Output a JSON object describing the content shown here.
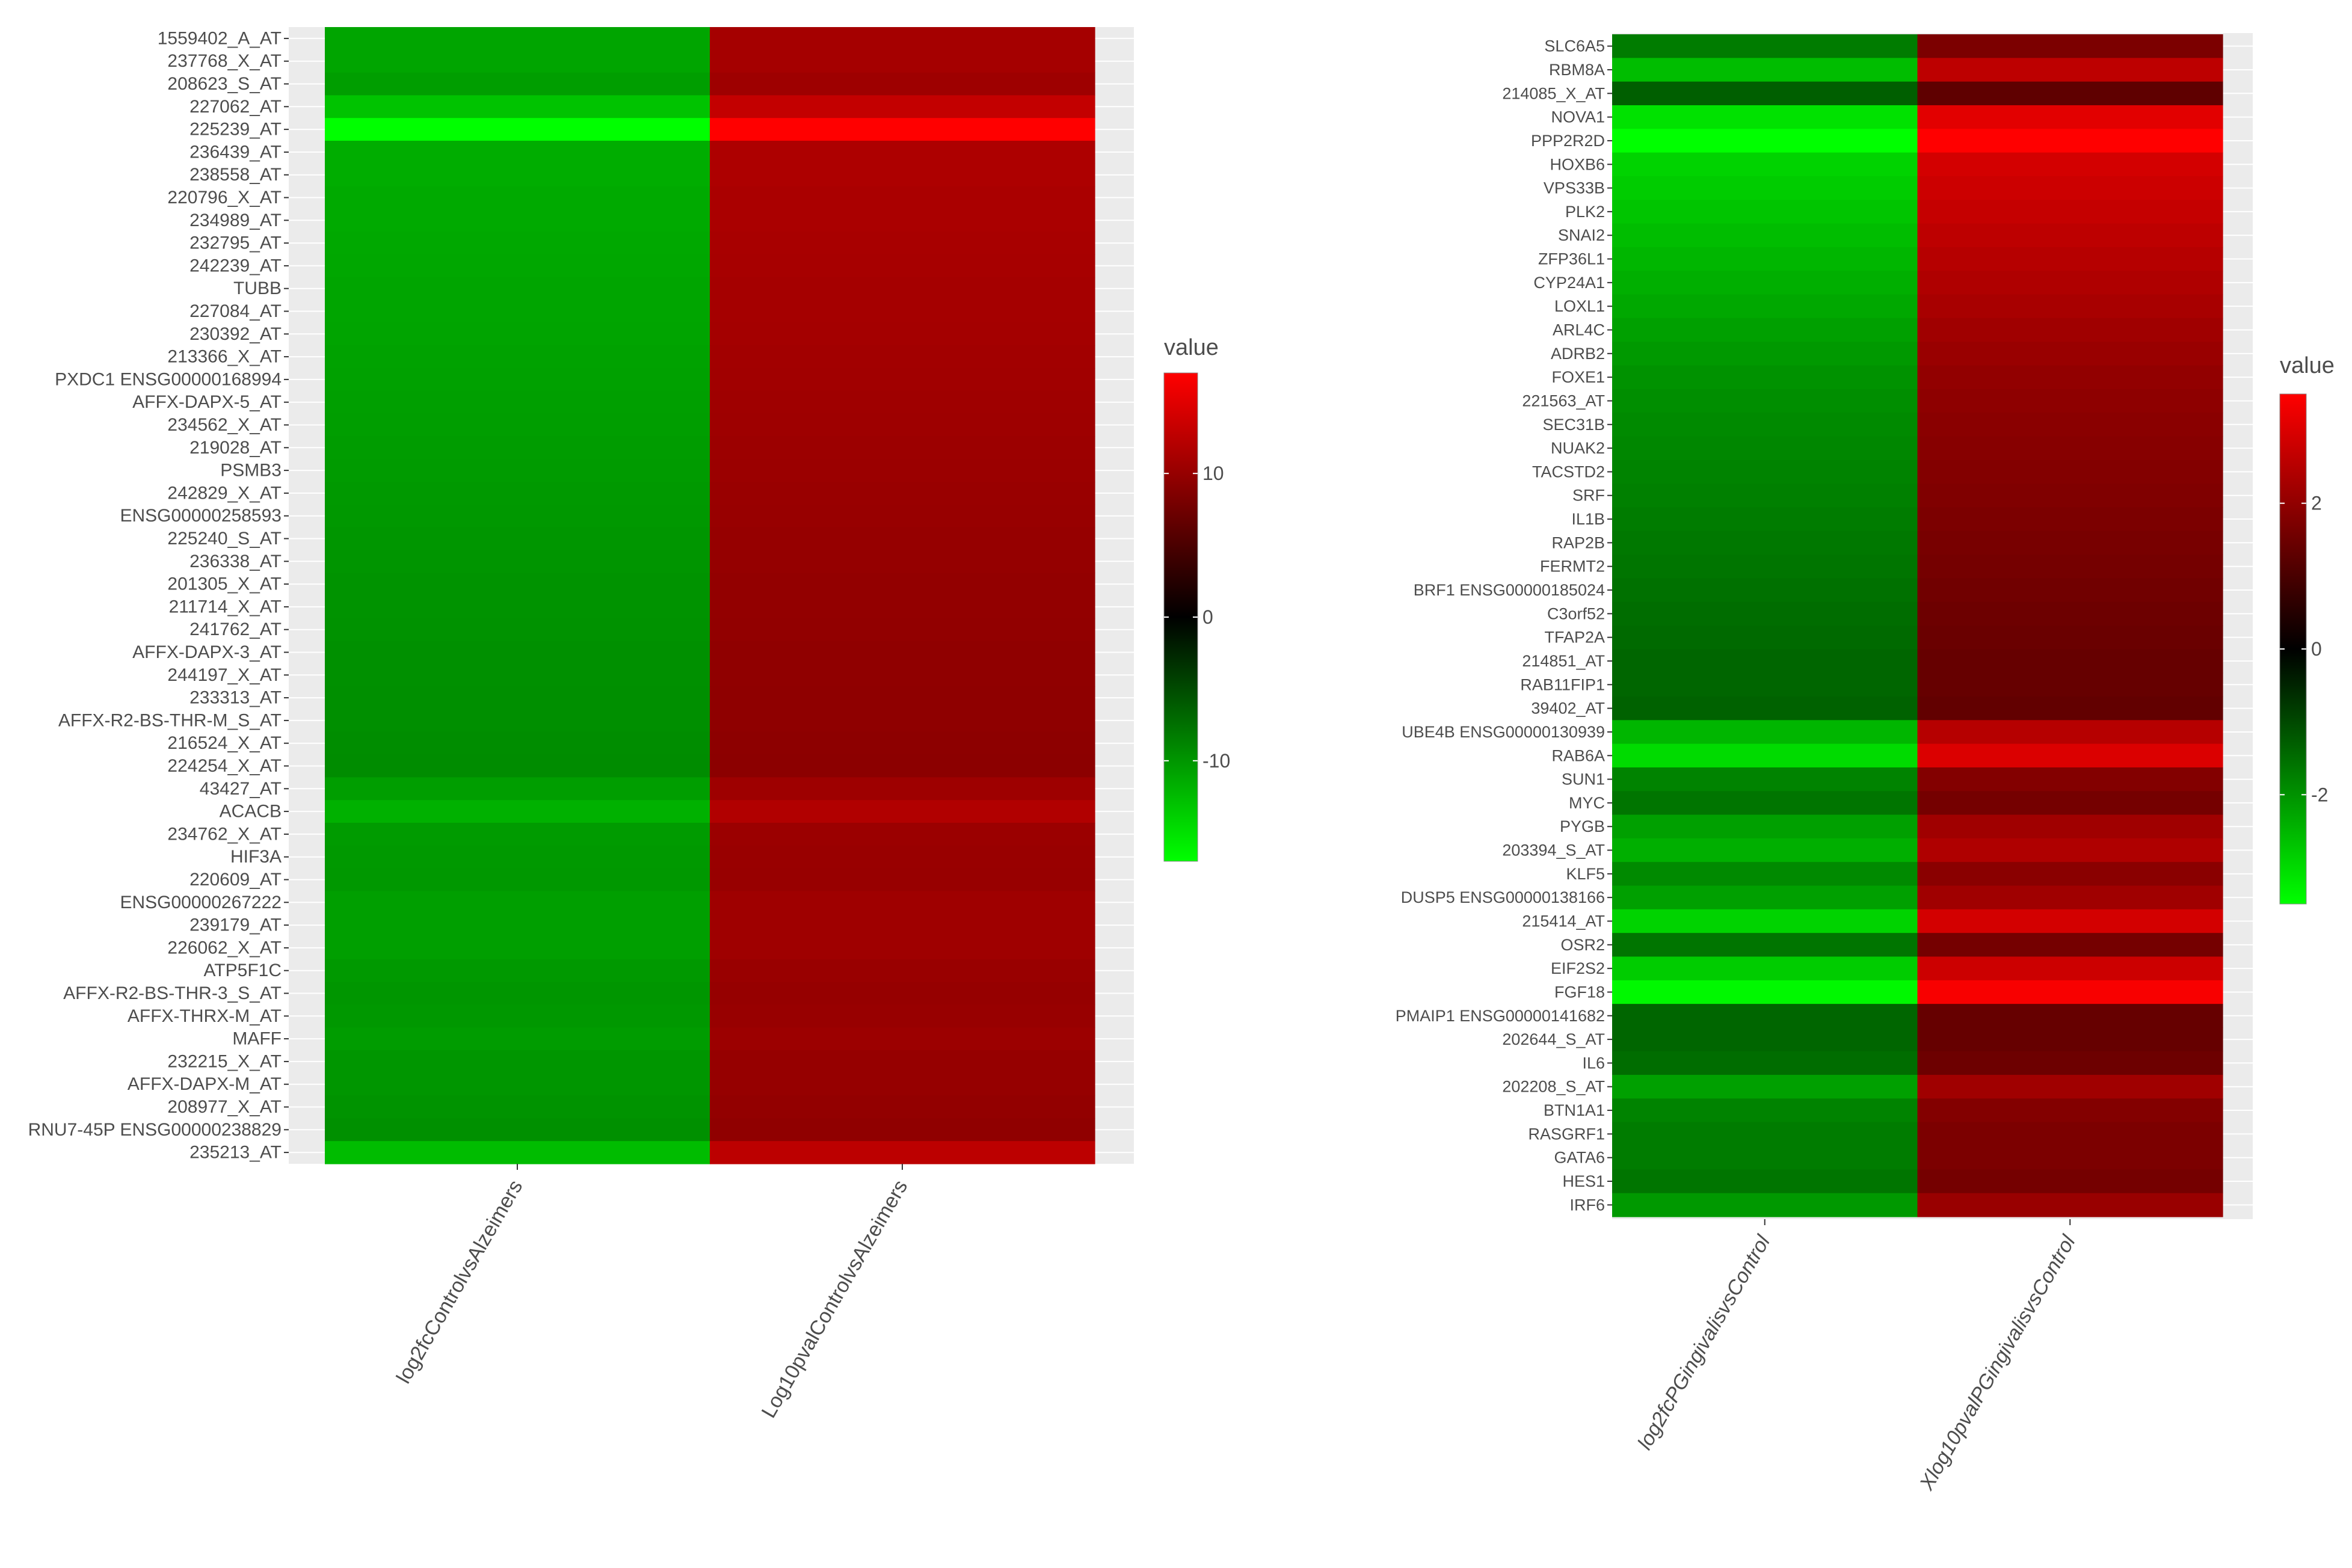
{
  "colors": {
    "neg": "#00ff00",
    "mid": "#000000",
    "pos": "#ff0000",
    "panel_bg": "#ebebeb",
    "text": "#4d4d4d"
  },
  "chart_data": [
    {
      "type": "heatmap",
      "title": "",
      "xlabel": "",
      "ylabel": "",
      "x_categories": [
        "log2fcControlvsAlzeimers",
        "Log10pvalControlvsAlzeimers"
      ],
      "y_categories": [
        "1559402_A_AT",
        "237768_X_AT",
        "208623_S_AT",
        "227062_AT",
        "225239_AT",
        "236439_AT",
        "238558_AT",
        "220796_X_AT",
        "234989_AT",
        "232795_AT",
        "242239_AT",
        "TUBB",
        "227084_AT",
        "230392_AT",
        "213366_X_AT",
        "PXDC1 ENSG00000168994",
        "AFFX-DAPX-5_AT",
        "234562_X_AT",
        "219028_AT",
        "PSMB3",
        "242829_X_AT",
        "ENSG00000258593",
        "225240_S_AT",
        "236338_AT",
        "201305_X_AT",
        "211714_X_AT",
        "241762_AT",
        "AFFX-DAPX-3_AT",
        "244197_X_AT",
        "233313_AT",
        "AFFX-R2-BS-THR-M_S_AT",
        "216524_X_AT",
        "224254_X_AT",
        "43427_AT",
        "ACACB",
        "234762_X_AT",
        "HIF3A",
        "220609_AT",
        "ENSG00000267222",
        "239179_AT",
        "226062_X_AT",
        "ATP5F1C",
        "AFFX-R2-BS-THR-3_S_AT",
        "AFFX-THRX-M_AT",
        "MAFF",
        "232215_X_AT",
        "AFFX-DAPX-M_AT",
        "208977_X_AT",
        "RNU7-45P ENSG00000238829",
        "235213_AT"
      ],
      "values": [
        [
          -11.0,
          11.0
        ],
        [
          -11.0,
          11.0
        ],
        [
          -10.5,
          10.5
        ],
        [
          -13.0,
          13.0
        ],
        [
          -17.0,
          17.0
        ],
        [
          -11.5,
          11.5
        ],
        [
          -11.5,
          11.5
        ],
        [
          -11.3,
          11.3
        ],
        [
          -11.3,
          11.3
        ],
        [
          -11.2,
          11.2
        ],
        [
          -11.1,
          11.1
        ],
        [
          -11.0,
          11.0
        ],
        [
          -11.0,
          11.0
        ],
        [
          -10.9,
          10.9
        ],
        [
          -10.8,
          10.8
        ],
        [
          -10.7,
          10.7
        ],
        [
          -10.6,
          10.6
        ],
        [
          -10.5,
          10.5
        ],
        [
          -10.4,
          10.4
        ],
        [
          -10.3,
          10.3
        ],
        [
          -10.2,
          10.2
        ],
        [
          -10.1,
          10.1
        ],
        [
          -10.0,
          10.0
        ],
        [
          -9.9,
          9.9
        ],
        [
          -9.8,
          9.8
        ],
        [
          -9.8,
          9.8
        ],
        [
          -9.7,
          9.7
        ],
        [
          -9.6,
          9.6
        ],
        [
          -9.6,
          9.6
        ],
        [
          -9.5,
          9.5
        ],
        [
          -9.5,
          9.5
        ],
        [
          -9.4,
          9.4
        ],
        [
          -9.3,
          9.3
        ],
        [
          -10.5,
          10.5
        ],
        [
          -11.8,
          11.8
        ],
        [
          -10.3,
          10.3
        ],
        [
          -10.2,
          10.2
        ],
        [
          -10.1,
          10.1
        ],
        [
          -10.6,
          10.6
        ],
        [
          -10.6,
          10.6
        ],
        [
          -10.6,
          10.6
        ],
        [
          -10.2,
          10.2
        ],
        [
          -10.0,
          10.0
        ],
        [
          -10.1,
          10.1
        ],
        [
          -10.4,
          10.4
        ],
        [
          -10.0,
          10.0
        ],
        [
          -10.0,
          10.0
        ],
        [
          -9.8,
          9.8
        ],
        [
          -9.6,
          9.6
        ],
        [
          -12.5,
          12.5
        ]
      ],
      "legend_title": "value",
      "legend_ticks": [
        10,
        0,
        -10
      ],
      "range": [
        -17,
        17
      ],
      "legend_position": "right"
    },
    {
      "type": "heatmap",
      "title": "",
      "xlabel": "",
      "ylabel": "",
      "x_categories": [
        "log2fcPGingivalisvsControl",
        "Xlog10pvalPGingivalisvsControl"
      ],
      "y_categories": [
        "SLC6A5",
        "RBM8A",
        "214085_X_AT",
        "NOVA1",
        "PPP2R2D",
        "HOXB6",
        "VPS33B",
        "PLK2",
        "SNAI2",
        "ZFP36L1",
        "CYP24A1",
        "LOXL1",
        "ARL4C",
        "ADRB2",
        "FOXE1",
        "221563_AT",
        "SEC31B",
        "NUAK2",
        "TACSTD2",
        "SRF",
        "IL1B",
        "RAP2B",
        "FERMT2",
        "BRF1 ENSG00000185024",
        "C3orf52",
        "TFAP2A",
        "214851_AT",
        "RAB11FIP1",
        "39402_AT",
        "UBE4B ENSG00000130939",
        "RAB6A",
        "SUN1",
        "MYC",
        "PYGB",
        "203394_S_AT",
        "KLF5",
        "DUSP5 ENSG00000138166",
        "215414_AT",
        "OSR2",
        "EIF2S2",
        "FGF18",
        "PMAIP1 ENSG00000141682",
        "202644_S_AT",
        "IL6",
        "202208_S_AT",
        "BTN1A1",
        "RASGRF1",
        "GATA6",
        "HES1",
        "IRF6"
      ],
      "values": [
        [
          -1.7,
          1.7
        ],
        [
          -2.6,
          2.6
        ],
        [
          -1.3,
          1.3
        ],
        [
          -3.1,
          3.1
        ],
        [
          -3.5,
          3.5
        ],
        [
          -2.9,
          2.9
        ],
        [
          -2.8,
          2.8
        ],
        [
          -2.7,
          2.7
        ],
        [
          -2.6,
          2.6
        ],
        [
          -2.5,
          2.5
        ],
        [
          -2.4,
          2.4
        ],
        [
          -2.3,
          2.3
        ],
        [
          -2.2,
          2.2
        ],
        [
          -2.1,
          2.1
        ],
        [
          -2.0,
          2.0
        ],
        [
          -1.95,
          1.95
        ],
        [
          -1.9,
          1.9
        ],
        [
          -1.85,
          1.85
        ],
        [
          -1.8,
          1.8
        ],
        [
          -1.75,
          1.75
        ],
        [
          -1.7,
          1.7
        ],
        [
          -1.65,
          1.65
        ],
        [
          -1.6,
          1.6
        ],
        [
          -1.55,
          1.55
        ],
        [
          -1.5,
          1.5
        ],
        [
          -1.45,
          1.45
        ],
        [
          -1.4,
          1.4
        ],
        [
          -1.4,
          1.4
        ],
        [
          -1.35,
          1.35
        ],
        [
          -2.5,
          2.5
        ],
        [
          -3.0,
          3.0
        ],
        [
          -1.8,
          1.8
        ],
        [
          -1.6,
          1.6
        ],
        [
          -2.2,
          2.2
        ],
        [
          -2.4,
          2.4
        ],
        [
          -1.9,
          1.9
        ],
        [
          -2.2,
          2.2
        ],
        [
          -2.9,
          2.9
        ],
        [
          -1.6,
          1.6
        ],
        [
          -2.8,
          2.8
        ],
        [
          -3.4,
          3.4
        ],
        [
          -1.4,
          1.4
        ],
        [
          -1.4,
          1.4
        ],
        [
          -1.5,
          1.5
        ],
        [
          -2.2,
          2.2
        ],
        [
          -1.8,
          1.8
        ],
        [
          -1.7,
          1.7
        ],
        [
          -1.7,
          1.7
        ],
        [
          -1.6,
          1.6
        ],
        [
          -2.1,
          2.1
        ]
      ],
      "legend_title": "value",
      "legend_ticks": [
        2,
        0,
        -2
      ],
      "range": [
        -3.5,
        3.5
      ],
      "legend_position": "right"
    }
  ]
}
